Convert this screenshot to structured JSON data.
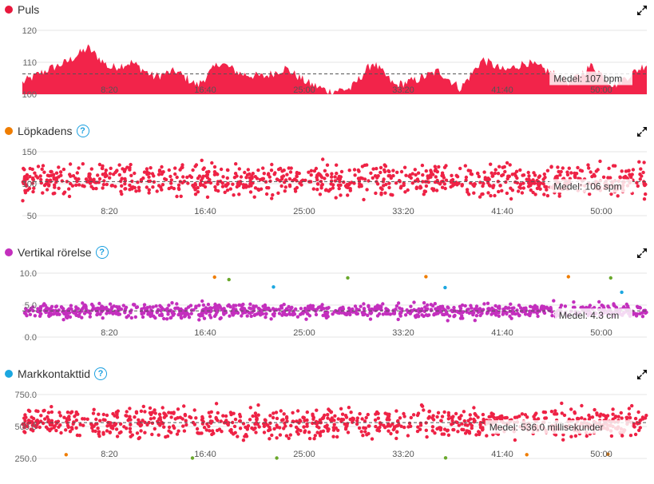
{
  "x_ticks": [
    "8:20",
    "16:40",
    "25:00",
    "33:20",
    "41:40",
    "50:00"
  ],
  "panels": [
    {
      "id": "puls",
      "title": "Puls",
      "dot_color": "#e8183c",
      "help": false,
      "avg_label": "Medel: 107 bpm",
      "y_ticks": [
        "120",
        "110",
        "100"
      ]
    },
    {
      "id": "lopkadens",
      "title": "Löpkadens",
      "dot_color": "#ef7d00",
      "help": true,
      "avg_label": "Medel: 106 spm",
      "y_ticks": [
        "150",
        "100",
        "50"
      ]
    },
    {
      "id": "vertikal",
      "title": "Vertikal rörelse",
      "dot_color": "#c32fbd",
      "help": true,
      "avg_label": "Medel: 4.3 cm",
      "y_ticks": [
        "10.0",
        "5.0",
        "0.0"
      ]
    },
    {
      "id": "markkontakt",
      "title": "Markkontakttid",
      "dot_color": "#1ba7e0",
      "help": true,
      "avg_label": "Medel: 536.0 millisekunder",
      "y_ticks": [
        "750.0",
        "500.0",
        "250.0"
      ]
    }
  ],
  "help_glyph": "?",
  "chart_data": [
    {
      "type": "area",
      "title": "Puls",
      "x_unit": "seconds",
      "x": [
        0,
        120,
        240,
        360,
        480,
        600,
        720,
        840,
        960,
        1080,
        1200,
        1320,
        1440,
        1560,
        1680,
        1800,
        1920,
        2040,
        2160,
        2280,
        2400,
        2520,
        2640,
        2760,
        2880,
        3000,
        3120,
        3240,
        3360
      ],
      "values": [
        104,
        108,
        111,
        116,
        109,
        111,
        106,
        108,
        103,
        111,
        107,
        106,
        109,
        104,
        101,
        102,
        111,
        103,
        105,
        108,
        102,
        112,
        108,
        111,
        108,
        104,
        110,
        103,
        108
      ],
      "ylim": [
        100,
        122
      ],
      "average": 107,
      "color": "#f2244a"
    },
    {
      "type": "scatter",
      "title": "Löpkadens",
      "series": [
        {
          "color": "#ee2245",
          "min": 70,
          "max": 145,
          "center": 108
        }
      ],
      "ylim": [
        50,
        155
      ],
      "average": 106
    },
    {
      "type": "scatter",
      "title": "Vertikal rörelse",
      "series": [
        {
          "color": "#c32fbd",
          "min": 3.0,
          "max": 6.5,
          "center": 4.3
        },
        {
          "color": "#1ba7e0",
          "min": 7.0,
          "max": 8.5,
          "center": 7.6
        },
        {
          "color": "#6aa82c",
          "min": 9.0,
          "max": 10.0,
          "center": 9.3
        },
        {
          "color": "#ef7d00",
          "min": 9.8,
          "max": 10.0,
          "center": 9.9
        }
      ],
      "ylim": [
        0,
        10.5
      ],
      "average": 4.3
    },
    {
      "type": "scatter",
      "title": "Markkontakttid",
      "series": [
        {
          "color": "#ee2245",
          "min": 380,
          "max": 720,
          "center": 536
        },
        {
          "color": "#6aa82c",
          "min": 250,
          "max": 255,
          "center": 252
        },
        {
          "color": "#ef7d00",
          "min": 280,
          "max": 285,
          "center": 282
        }
      ],
      "ylim": [
        250,
        760
      ],
      "average": 536
    }
  ]
}
